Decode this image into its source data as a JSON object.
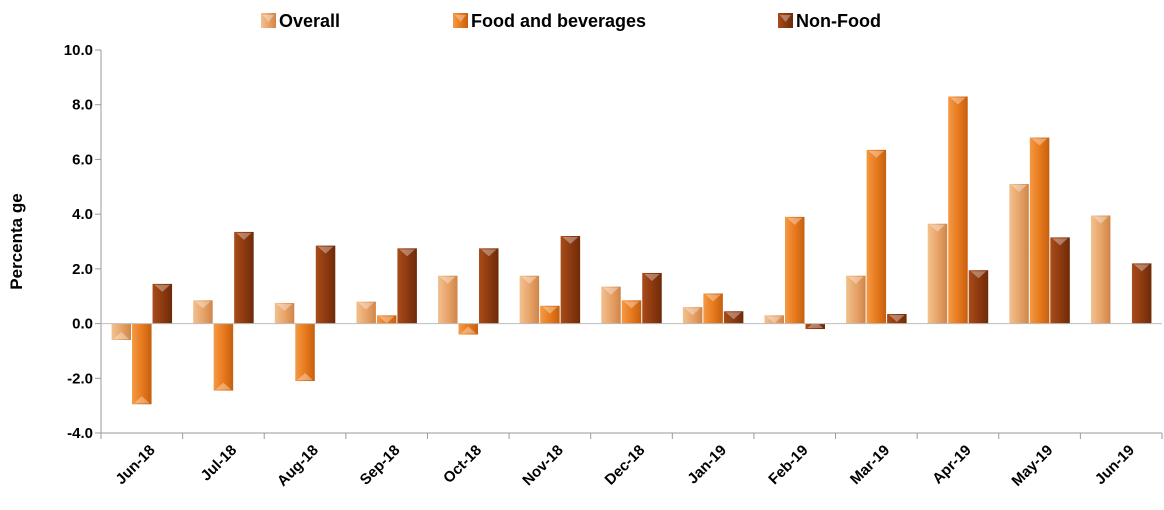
{
  "chart_data": {
    "type": "bar",
    "title": "",
    "xlabel": "",
    "ylabel": "Percenta ge",
    "ylim": [
      -4.0,
      10.0
    ],
    "yticks": [
      "10.0",
      "8.0",
      "6.0",
      "4.0",
      "2.0",
      "0.0",
      "-2.0",
      "-4.0"
    ],
    "grid": false,
    "legend_position": "top",
    "categories": [
      "Jun-18",
      "Jul-18",
      "Aug-18",
      "Sep-18",
      "Oct-18",
      "Nov-18",
      "Dec-18",
      "Jan-19",
      "Feb-19",
      "Mar-19",
      "Apr-19",
      "May-19",
      "Jun-19"
    ],
    "series": [
      {
        "name": "Overall",
        "color": "#e8a46a",
        "values": [
          -0.6,
          0.85,
          0.75,
          0.8,
          1.75,
          1.75,
          1.35,
          0.6,
          0.3,
          1.75,
          3.65,
          5.1,
          3.95
        ]
      },
      {
        "name": "Food and beverages",
        "color": "#e87a1e",
        "values": [
          -2.95,
          -2.45,
          -2.1,
          0.3,
          -0.4,
          0.65,
          0.85,
          1.1,
          3.9,
          6.35,
          8.3,
          6.8,
          null
        ]
      },
      {
        "name": "Non-Food",
        "color": "#8e3a10",
        "values": [
          1.45,
          3.35,
          2.85,
          2.75,
          2.75,
          3.2,
          1.85,
          0.45,
          -0.2,
          0.35,
          1.95,
          3.15,
          2.2
        ]
      }
    ]
  }
}
